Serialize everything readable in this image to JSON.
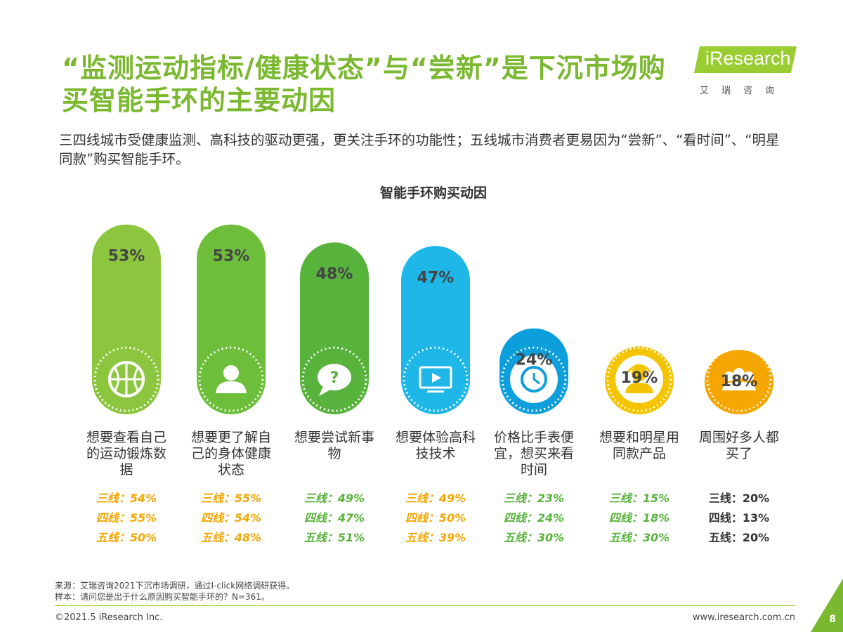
{
  "header": {
    "title": "“监测运动指标/健康状态”与“尝新”是下沉市场购买智能手环的主要动因",
    "subtitle": "三四线城市受健康监测、高科技的驱动更强，更关注手环的功能性；五线城市消费者更易因为“尝新”、“看时间”、“明星同款”购买智能手环。"
  },
  "logo": {
    "name": "iResearch",
    "cn": "艾瑞咨询"
  },
  "chart_data": {
    "type": "bar",
    "title": "智能手环购买动因",
    "unit": "%",
    "ylim": [
      0,
      100
    ],
    "categories": [
      "想要查看自己的运动锻炼数据",
      "想要更了解自己的身体健康状态",
      "想要尝试新事物",
      "想要体验高科技技术",
      "价格比手表便宜，想买来看时间",
      "想要和明星用同款产品",
      "周围好多人都买了"
    ],
    "values": [
      53,
      53,
      48,
      47,
      24,
      19,
      18
    ],
    "value_labels": [
      "53%",
      "53%",
      "48%",
      "47%",
      "24%",
      "19%",
      "18%"
    ],
    "icons": [
      "basketball-icon",
      "person-icon",
      "speech-question-icon",
      "monitor-play-icon",
      "clock-icon",
      "user-headset-icon",
      "group-icon"
    ],
    "colors": [
      "#8cc63f",
      "#6dbf3b",
      "#58b33c",
      "#1fb6e8",
      "#0d9fdc",
      "#f5c400",
      "#f5a600"
    ],
    "stat_colors": [
      "#f5a600",
      "#f5a600",
      "#58b33c",
      "#f5a600",
      "#58b33c",
      "#58b33c",
      "#333333"
    ],
    "series_breakdown": [
      {
        "name": "三线",
        "values": [
          54,
          55,
          49,
          49,
          23,
          15,
          20
        ],
        "labels": [
          "三线：54%",
          "三线：55%",
          "三线：49%",
          "三线：49%",
          "三线：23%",
          "三线：15%",
          "三线：20%"
        ]
      },
      {
        "name": "四线",
        "values": [
          55,
          54,
          47,
          50,
          24,
          18,
          13
        ],
        "labels": [
          "四线：55%",
          "四线：54%",
          "四线：47%",
          "四线：50%",
          "四线：24%",
          "四线：18%",
          "四线：13%"
        ]
      },
      {
        "name": "五线",
        "values": [
          50,
          48,
          51,
          39,
          30,
          30,
          20
        ],
        "labels": [
          "五线：50%",
          "五线：48%",
          "五线：51%",
          "五线：39%",
          "五线：30%",
          "五线：30%",
          "五线：20%"
        ]
      }
    ]
  },
  "footer": {
    "source": "来源：艾瑞咨询2021下沉市场调研，通过I-click网络调研获得。",
    "sample": "样本：请问您是出于什么原因购买智能手环的？N=361。",
    "copyright": "©2021.5 iResearch Inc.",
    "website": "www.iresearch.com.cn",
    "page": "8"
  }
}
